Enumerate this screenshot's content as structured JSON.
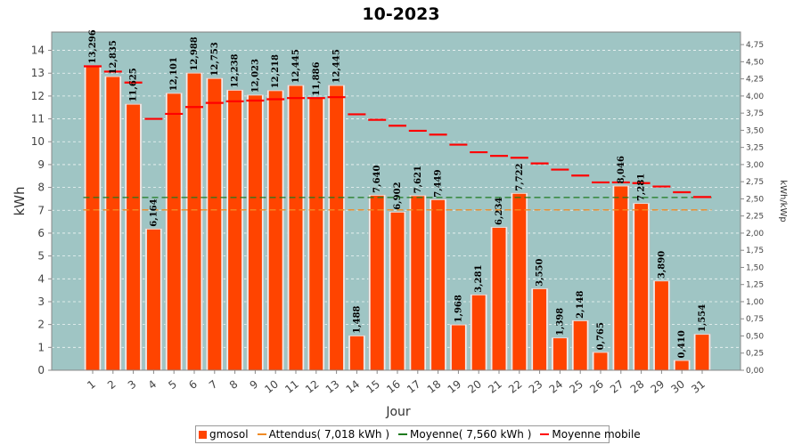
{
  "chart_data": {
    "type": "bar",
    "title": "10-2023",
    "xlabel": "Jour",
    "ylabel": "kWh",
    "y2label": "kWh/kWp",
    "ylim": [
      0,
      14.8
    ],
    "y2lim": [
      0,
      4.933
    ],
    "yticks": [
      "0",
      "1",
      "2",
      "3",
      "4",
      "5",
      "6",
      "7",
      "8",
      "9",
      "10",
      "11",
      "12",
      "13",
      "14"
    ],
    "y2ticks": [
      "0,00",
      "0,25",
      "0,50",
      "0,75",
      "1,00",
      "1,25",
      "1,50",
      "1,75",
      "2,00",
      "2,25",
      "2,50",
      "2,75",
      "3,00",
      "3,25",
      "3,50",
      "3,75",
      "4,00",
      "4,25",
      "4,50",
      "4,75"
    ],
    "categories": [
      "1",
      "2",
      "3",
      "4",
      "5",
      "6",
      "7",
      "8",
      "9",
      "10",
      "11",
      "12",
      "13",
      "14",
      "15",
      "16",
      "17",
      "18",
      "19",
      "20",
      "21",
      "22",
      "23",
      "24",
      "25",
      "26",
      "27",
      "28",
      "29",
      "30",
      "31"
    ],
    "series": [
      {
        "name": "gmosol",
        "type": "bar",
        "color": "#ff4400",
        "values": [
          13.296,
          12.835,
          11.625,
          6.164,
          12.101,
          12.988,
          12.753,
          12.238,
          12.023,
          12.218,
          12.445,
          11.886,
          12.445,
          1.488,
          7.64,
          6.902,
          7.621,
          7.449,
          1.968,
          3.281,
          6.234,
          7.722,
          3.55,
          1.398,
          2.148,
          0.765,
          8.046,
          7.281,
          3.89,
          0.41,
          1.554
        ],
        "labels": [
          "13,296",
          "12,835",
          "11,625",
          "6,164",
          "12,101",
          "12,988",
          "12,753",
          "12,238",
          "12,023",
          "12,218",
          "12,445",
          "11,886",
          "12,445",
          "1,488",
          "7,640",
          "6,902",
          "7,621",
          "7,449",
          "1,968",
          "3,281",
          "6,234",
          "7,722",
          "3,550",
          "1,398",
          "2,148",
          "0,765",
          "8,046",
          "7,281",
          "3,890",
          "0,410",
          "1,554"
        ]
      },
      {
        "name": "Attendus( 7,018 kWh )",
        "type": "hline",
        "color": "#f08a24",
        "value": 7.018
      },
      {
        "name": "Moyenne( 7,560 kWh )",
        "type": "hline",
        "color": "#1e7a1e",
        "value": 7.56
      },
      {
        "name": "Moyenne mobile",
        "type": "marker",
        "color": "#ff0000",
        "values": [
          13.3,
          13.07,
          12.59,
          11.0,
          11.22,
          11.52,
          11.7,
          11.77,
          11.8,
          11.86,
          11.91,
          11.91,
          11.95,
          11.2,
          10.96,
          10.7,
          10.48,
          10.31,
          9.87,
          9.54,
          9.38,
          9.3,
          9.05,
          8.78,
          8.52,
          8.22,
          8.22,
          8.19,
          8.04,
          7.79,
          7.58
        ]
      }
    ],
    "grid": true,
    "legend_position": "bottom"
  }
}
